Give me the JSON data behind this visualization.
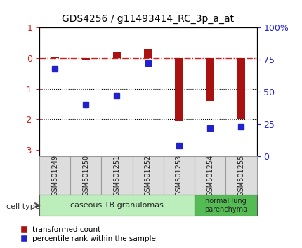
{
  "title": "GDS4256 / g11493414_RC_3p_a_at",
  "samples": [
    "GSM501249",
    "GSM501250",
    "GSM501251",
    "GSM501252",
    "GSM501253",
    "GSM501254",
    "GSM501255"
  ],
  "red_values": [
    0.05,
    -0.05,
    0.2,
    0.3,
    -2.05,
    -1.4,
    -2.0
  ],
  "blue_values": [
    68,
    40,
    47,
    72,
    8,
    22,
    23
  ],
  "red_color": "#aa1111",
  "blue_color": "#2222cc",
  "dash_color": "#cc2222",
  "ylim_left": [
    -3.2,
    1.0
  ],
  "ylim_right": [
    0,
    100
  ],
  "left_ticks": [
    1,
    0,
    -1,
    -2,
    -3
  ],
  "right_ticks": [
    100,
    75,
    50,
    25,
    0
  ],
  "right_tick_labels": [
    "100%",
    "75",
    "50",
    "25",
    "0"
  ],
  "legend_items": [
    {
      "label": "transformed count",
      "color": "#aa1111"
    },
    {
      "label": "percentile rank within the sample",
      "color": "#2222cc"
    }
  ],
  "bg_color": "#ffffff",
  "bar_width": 0.25,
  "group1_color": "#bbeebb",
  "group2_color": "#55bb55",
  "group1_label": "caseous TB granulomas",
  "group2_label": "normal lung\nparenchyma",
  "cell_type_text": "cell type"
}
